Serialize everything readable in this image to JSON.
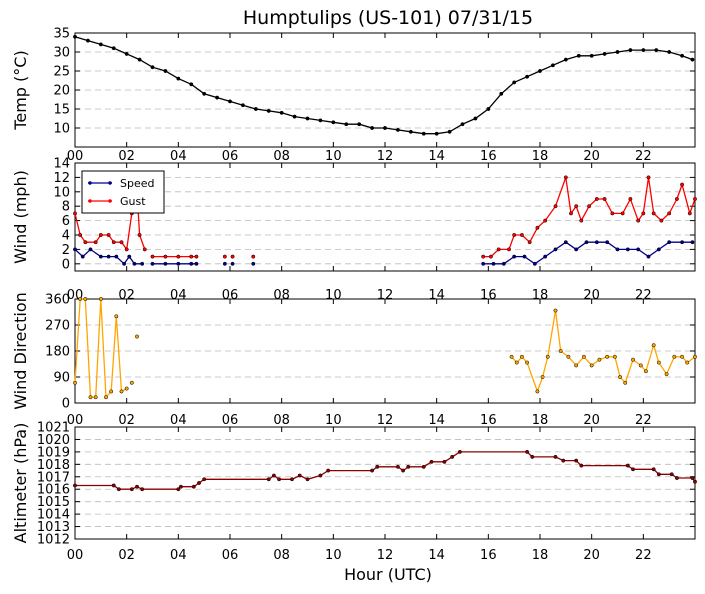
{
  "title": "Humptulips (US-101) 07/31/15",
  "xlabel": "Hour (UTC)",
  "x_tick_labels": [
    "00",
    "02",
    "04",
    "06",
    "08",
    "10",
    "12",
    "14",
    "16",
    "18",
    "20",
    "22"
  ],
  "chart_data": [
    {
      "type": "line",
      "ylabel": "Temp (°C)",
      "ylim": [
        5,
        35
      ],
      "yticks": [
        10,
        15,
        20,
        25,
        30,
        35
      ],
      "grid": true,
      "color": "#000000",
      "series": [
        {
          "values": [
            [
              0.0,
              34.0
            ],
            [
              0.5,
              33.0
            ],
            [
              1.0,
              32.0
            ],
            [
              1.5,
              31.0
            ],
            [
              2.0,
              29.5
            ],
            [
              2.5,
              28.0
            ],
            [
              3.0,
              26.0
            ],
            [
              3.5,
              25.0
            ],
            [
              4.0,
              23.0
            ],
            [
              4.5,
              21.5
            ],
            [
              5.0,
              19.0
            ],
            [
              5.5,
              18.0
            ],
            [
              6.0,
              17.0
            ],
            [
              6.5,
              16.0
            ],
            [
              7.0,
              15.0
            ],
            [
              7.5,
              14.5
            ],
            [
              8.0,
              14.0
            ],
            [
              8.5,
              13.0
            ],
            [
              9.0,
              12.5
            ],
            [
              9.5,
              12.0
            ],
            [
              10.0,
              11.5
            ],
            [
              10.5,
              11.0
            ],
            [
              11.0,
              11.0
            ],
            [
              11.5,
              10.0
            ],
            [
              12.0,
              10.0
            ],
            [
              12.5,
              9.5
            ],
            [
              13.0,
              9.0
            ],
            [
              13.5,
              8.5
            ],
            [
              14.0,
              8.5
            ],
            [
              14.5,
              9.0
            ],
            [
              15.0,
              11.0
            ],
            [
              15.5,
              12.5
            ],
            [
              16.0,
              15.0
            ],
            [
              16.5,
              19.0
            ],
            [
              17.0,
              22.0
            ],
            [
              17.5,
              23.5
            ],
            [
              18.0,
              25.0
            ],
            [
              18.5,
              26.5
            ],
            [
              19.0,
              28.0
            ],
            [
              19.5,
              29.0
            ],
            [
              20.0,
              29.0
            ],
            [
              20.5,
              29.5
            ],
            [
              21.0,
              30.0
            ],
            [
              21.5,
              30.5
            ],
            [
              22.0,
              30.5
            ],
            [
              22.5,
              30.5
            ],
            [
              23.0,
              30.0
            ],
            [
              23.5,
              29.0
            ],
            [
              23.9,
              28.0
            ]
          ]
        }
      ]
    },
    {
      "type": "line",
      "ylabel": "Wind (mph)",
      "ylim": [
        -1,
        14
      ],
      "yticks": [
        0,
        2,
        4,
        6,
        8,
        10,
        12,
        14
      ],
      "grid": true,
      "legend": "top-left",
      "series": [
        {
          "name": "Speed",
          "color": "#00008b",
          "segments": [
            [
              [
                0.0,
                2
              ],
              [
                0.3,
                1
              ],
              [
                0.6,
                2
              ],
              [
                1.0,
                1
              ],
              [
                1.3,
                1
              ],
              [
                1.6,
                1
              ],
              [
                1.9,
                0
              ],
              [
                2.1,
                1
              ],
              [
                2.3,
                0
              ],
              [
                2.6,
                0
              ]
            ],
            [
              [
                3.0,
                0
              ],
              [
                3.5,
                0
              ],
              [
                4.0,
                0
              ],
              [
                4.5,
                0
              ],
              [
                4.7,
                0
              ]
            ],
            [
              [
                5.8,
                0
              ]
            ],
            [
              [
                6.1,
                0
              ]
            ],
            [
              [
                6.9,
                0
              ]
            ],
            [
              [
                15.8,
                0
              ],
              [
                16.2,
                0
              ],
              [
                16.6,
                0
              ],
              [
                17.0,
                1
              ],
              [
                17.4,
                1
              ],
              [
                17.8,
                0
              ],
              [
                18.2,
                1
              ],
              [
                18.6,
                2
              ],
              [
                19.0,
                3
              ],
              [
                19.4,
                2
              ],
              [
                19.8,
                3
              ],
              [
                20.2,
                3
              ],
              [
                20.6,
                3
              ],
              [
                21.0,
                2
              ],
              [
                21.4,
                2
              ],
              [
                21.8,
                2
              ],
              [
                22.2,
                1
              ],
              [
                22.6,
                2
              ],
              [
                23.0,
                3
              ],
              [
                23.5,
                3
              ],
              [
                23.9,
                3
              ]
            ]
          ]
        },
        {
          "name": "Gust",
          "color": "#ff0000",
          "segments": [
            [
              [
                0.0,
                7
              ],
              [
                0.2,
                4
              ],
              [
                0.4,
                3
              ],
              [
                0.8,
                3
              ],
              [
                1.0,
                4
              ],
              [
                1.3,
                4
              ],
              [
                1.5,
                3
              ],
              [
                1.8,
                3
              ],
              [
                2.0,
                2
              ],
              [
                2.2,
                7
              ],
              [
                2.4,
                10
              ],
              [
                2.5,
                4
              ],
              [
                2.7,
                2
              ]
            ],
            [
              [
                3.0,
                1
              ],
              [
                3.5,
                1
              ],
              [
                4.0,
                1
              ],
              [
                4.5,
                1
              ],
              [
                4.7,
                1
              ]
            ],
            [
              [
                5.8,
                1
              ]
            ],
            [
              [
                6.1,
                1
              ]
            ],
            [
              [
                6.9,
                1
              ]
            ],
            [
              [
                15.8,
                1
              ],
              [
                16.1,
                1
              ],
              [
                16.4,
                2
              ],
              [
                16.8,
                2
              ],
              [
                17.0,
                4
              ],
              [
                17.3,
                4
              ],
              [
                17.6,
                3
              ],
              [
                17.9,
                5
              ],
              [
                18.2,
                6
              ],
              [
                18.6,
                8
              ],
              [
                19.0,
                12
              ],
              [
                19.2,
                7
              ],
              [
                19.4,
                8
              ],
              [
                19.6,
                6
              ],
              [
                19.9,
                8
              ],
              [
                20.2,
                9
              ],
              [
                20.5,
                9
              ],
              [
                20.8,
                7
              ],
              [
                21.2,
                7
              ],
              [
                21.5,
                9
              ],
              [
                21.8,
                6
              ],
              [
                22.0,
                7
              ],
              [
                22.2,
                12
              ],
              [
                22.4,
                7
              ],
              [
                22.7,
                6
              ],
              [
                23.0,
                7
              ],
              [
                23.3,
                9
              ],
              [
                23.5,
                11
              ],
              [
                23.8,
                7
              ],
              [
                24.0,
                9
              ]
            ]
          ]
        }
      ]
    },
    {
      "type": "line",
      "ylabel": "Wind Direction",
      "ylim": [
        0,
        360
      ],
      "yticks": [
        0,
        90,
        180,
        270,
        360
      ],
      "grid": true,
      "color": "#ffa500",
      "series": [
        {
          "segments": [
            [
              [
                0.0,
                70
              ],
              [
                0.2,
                360
              ],
              [
                0.4,
                360
              ],
              [
                0.6,
                20
              ],
              [
                0.8,
                20
              ],
              [
                1.0,
                360
              ],
              [
                1.2,
                20
              ],
              [
                1.4,
                40
              ],
              [
                1.6,
                300
              ],
              [
                1.8,
                40
              ],
              [
                2.0,
                50
              ]
            ],
            [
              [
                2.2,
                70
              ]
            ],
            [
              [
                2.4,
                230
              ]
            ],
            [
              [
                16.9,
                160
              ],
              [
                17.1,
                140
              ],
              [
                17.3,
                160
              ],
              [
                17.5,
                140
              ],
              [
                17.9,
                40
              ],
              [
                18.1,
                90
              ],
              [
                18.3,
                160
              ],
              [
                18.6,
                320
              ],
              [
                18.8,
                180
              ],
              [
                19.1,
                160
              ],
              [
                19.4,
                130
              ],
              [
                19.7,
                160
              ],
              [
                20.0,
                130
              ],
              [
                20.3,
                150
              ],
              [
                20.6,
                160
              ],
              [
                20.9,
                160
              ],
              [
                21.1,
                90
              ],
              [
                21.3,
                70
              ],
              [
                21.6,
                150
              ],
              [
                21.9,
                130
              ],
              [
                22.1,
                110
              ],
              [
                22.4,
                200
              ],
              [
                22.6,
                140
              ],
              [
                22.9,
                100
              ],
              [
                23.2,
                160
              ],
              [
                23.5,
                160
              ],
              [
                23.7,
                140
              ],
              [
                24.0,
                160
              ]
            ]
          ]
        }
      ]
    },
    {
      "type": "line",
      "ylabel": "Altimeter (hPa)",
      "ylim": [
        1012,
        1021
      ],
      "yticks": [
        1012,
        1013,
        1014,
        1015,
        1016,
        1017,
        1018,
        1019,
        1020,
        1021
      ],
      "grid": true,
      "color": "#8b0000",
      "series": [
        {
          "values": [
            [
              0.0,
              1016.3
            ],
            [
              1.5,
              1016.3
            ],
            [
              1.7,
              1016.0
            ],
            [
              2.2,
              1016.0
            ],
            [
              2.4,
              1016.2
            ],
            [
              2.6,
              1016.0
            ],
            [
              4.0,
              1016.0
            ],
            [
              4.1,
              1016.2
            ],
            [
              4.6,
              1016.2
            ],
            [
              4.8,
              1016.5
            ],
            [
              5.0,
              1016.8
            ],
            [
              7.5,
              1016.8
            ],
            [
              7.7,
              1017.1
            ],
            [
              7.9,
              1016.8
            ],
            [
              8.4,
              1016.8
            ],
            [
              8.7,
              1017.1
            ],
            [
              9.0,
              1016.8
            ],
            [
              9.5,
              1017.1
            ],
            [
              9.8,
              1017.5
            ],
            [
              11.5,
              1017.5
            ],
            [
              11.7,
              1017.8
            ],
            [
              12.5,
              1017.8
            ],
            [
              12.7,
              1017.5
            ],
            [
              12.9,
              1017.8
            ],
            [
              13.5,
              1017.8
            ],
            [
              13.8,
              1018.2
            ],
            [
              14.3,
              1018.2
            ],
            [
              14.6,
              1018.6
            ],
            [
              14.9,
              1019.0
            ],
            [
              17.5,
              1019.0
            ],
            [
              17.7,
              1018.6
            ],
            [
              18.6,
              1018.6
            ],
            [
              18.9,
              1018.3
            ],
            [
              19.4,
              1018.3
            ],
            [
              19.6,
              1017.9
            ],
            [
              21.4,
              1017.9
            ],
            [
              21.6,
              1017.6
            ],
            [
              22.4,
              1017.6
            ],
            [
              22.6,
              1017.2
            ],
            [
              23.1,
              1017.2
            ],
            [
              23.3,
              1016.9
            ],
            [
              23.9,
              1016.9
            ],
            [
              24.0,
              1016.6
            ]
          ]
        }
      ]
    }
  ]
}
